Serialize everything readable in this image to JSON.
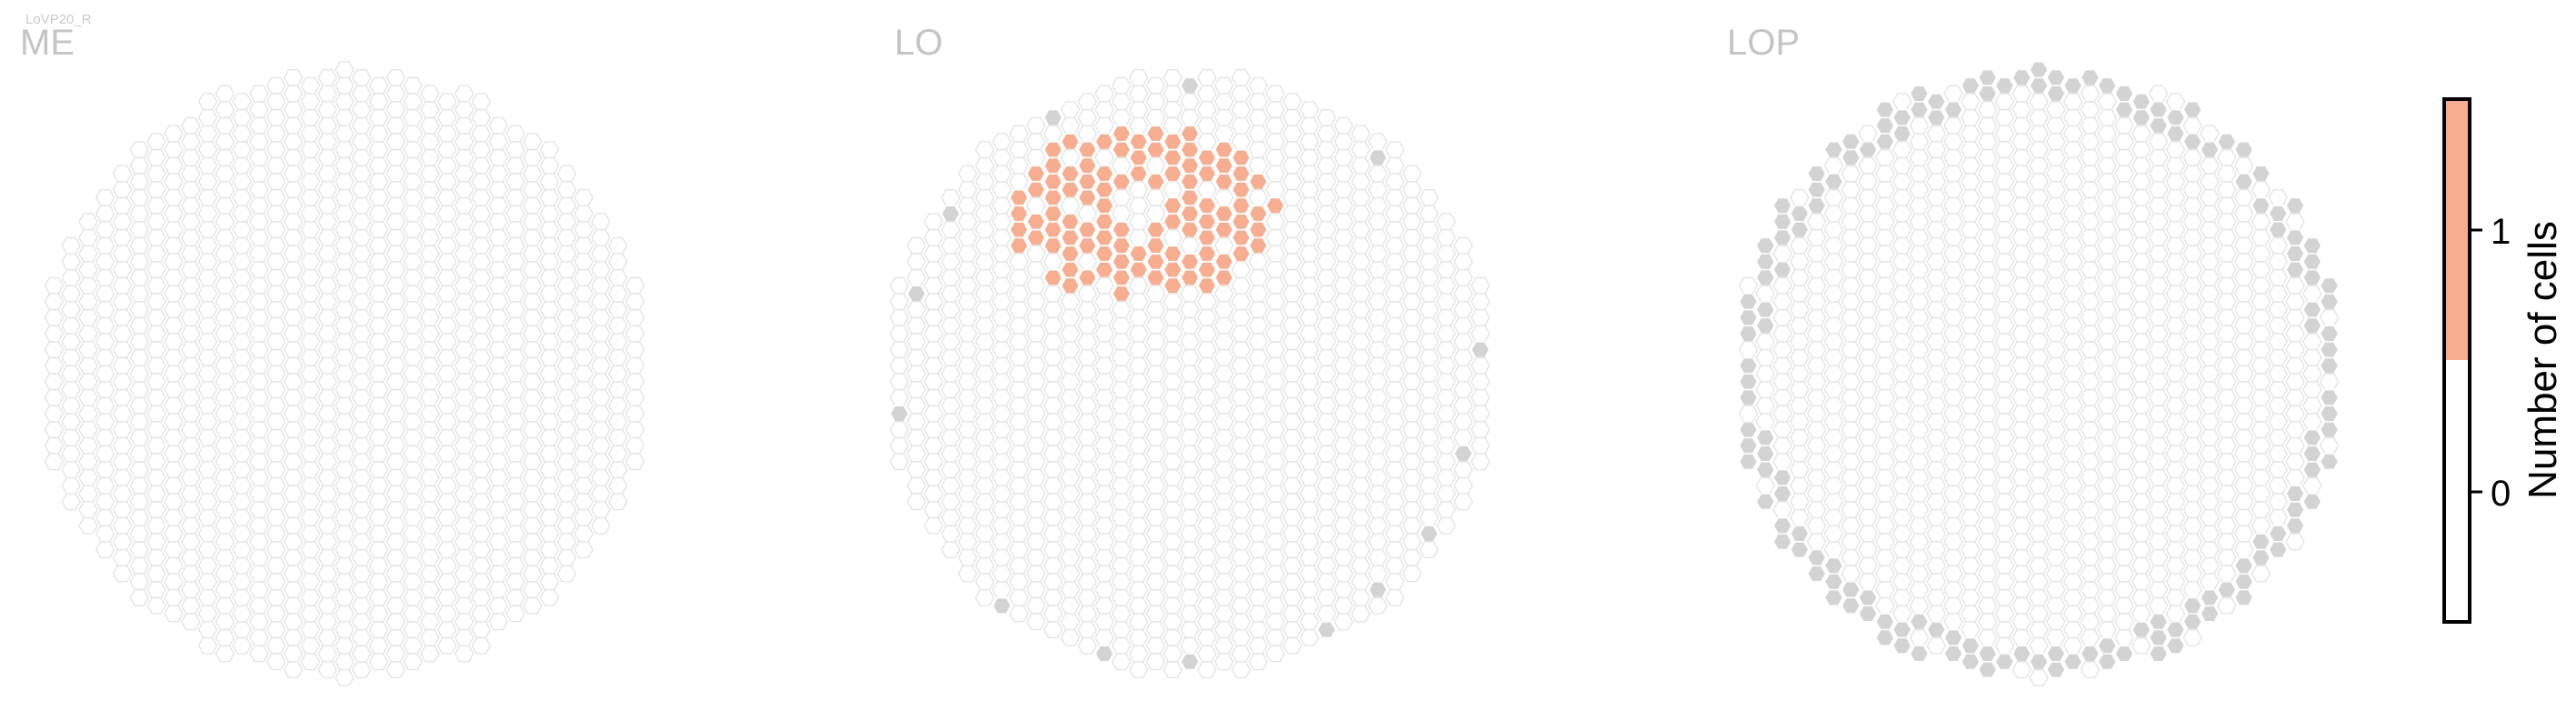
{
  "figure_title": "LoVP20_R",
  "colors": {
    "empty_fill": "#ffffff",
    "empty_stroke": "#e4e4e4",
    "count_one": "#f7ad8f",
    "unused_column": "#d3d3d3",
    "background": "#ffffff",
    "colorbar_frame": "#000000"
  },
  "chart_data": [
    {
      "type": "heatmap",
      "title": "ME",
      "layout": "hexagonal-eye-map",
      "value_counts": {
        "0": "all hexagons",
        "1": 0
      },
      "grey_hexagons": 0
    },
    {
      "type": "heatmap",
      "title": "LO",
      "layout": "hexagonal-eye-map",
      "value_counts": {
        "1": 71
      },
      "cluster_location": "upper-center",
      "grey_hexagons": 17
    },
    {
      "type": "heatmap",
      "title": "LOP",
      "layout": "hexagonal-eye-map",
      "value_counts": {
        "1": 0
      },
      "grey_hexagons": 62,
      "grey_location": "ring along the boundary"
    }
  ],
  "colorbar": {
    "label": "Number of cells",
    "ticks": [
      "0",
      "1"
    ],
    "range": [
      -0.5,
      1.5
    ],
    "segments": [
      {
        "from": -0.5,
        "to": 0.5,
        "color": "#ffffff"
      },
      {
        "from": 0.5,
        "to": 1.5,
        "color": "#f7ad8f"
      }
    ]
  }
}
